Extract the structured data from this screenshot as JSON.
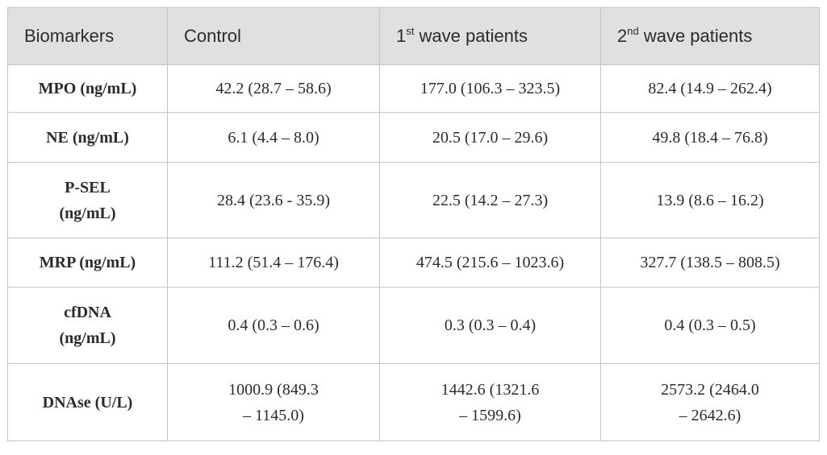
{
  "table": {
    "headers": [
      {
        "text": "Biomarkers",
        "sup": "",
        "after": ""
      },
      {
        "text": "Control",
        "sup": "",
        "after": ""
      },
      {
        "text": "1",
        "sup": "st",
        "after": " wave patients"
      },
      {
        "text": "2",
        "sup": "nd",
        "after": " wave patients"
      }
    ],
    "rows": [
      {
        "label": [
          "MPO (ng/mL)"
        ],
        "control": [
          "42.2 (28.7 – 58.6)"
        ],
        "wave1": [
          "177.0 (106.3 – 323.5)"
        ],
        "wave2": [
          "82.4 (14.9 – 262.4)"
        ]
      },
      {
        "label": [
          "NE (ng/mL)"
        ],
        "control": [
          "6.1 (4.4 – 8.0)"
        ],
        "wave1": [
          "20.5 (17.0 – 29.6)"
        ],
        "wave2": [
          "49.8 (18.4 – 76.8)"
        ]
      },
      {
        "label": [
          "P-SEL",
          "(ng/mL)"
        ],
        "control": [
          "28.4 (23.6 - 35.9)"
        ],
        "wave1": [
          "22.5 (14.2 – 27.3)"
        ],
        "wave2": [
          "13.9 (8.6 – 16.2)"
        ]
      },
      {
        "label": [
          "MRP (ng/mL)"
        ],
        "control": [
          "111.2 (51.4 – 176.4)"
        ],
        "wave1": [
          "474.5 (215.6 – 1023.6)"
        ],
        "wave2": [
          "327.7 (138.5 – 808.5)"
        ]
      },
      {
        "label": [
          "cfDNA",
          "(ng/mL)"
        ],
        "control": [
          "0.4 (0.3 – 0.6)"
        ],
        "wave1": [
          "0.3 (0.3 – 0.4)"
        ],
        "wave2": [
          "0.4 (0.3 – 0.5)"
        ]
      },
      {
        "label": [
          "DNAse (U/L)"
        ],
        "control": [
          "1000.9 (849.3",
          "– 1145.0)"
        ],
        "wave1": [
          "1442.6 (1321.6",
          "– 1599.6)"
        ],
        "wave2": [
          "2573.2 (2464.0",
          "– 2642.6)"
        ]
      }
    ]
  }
}
